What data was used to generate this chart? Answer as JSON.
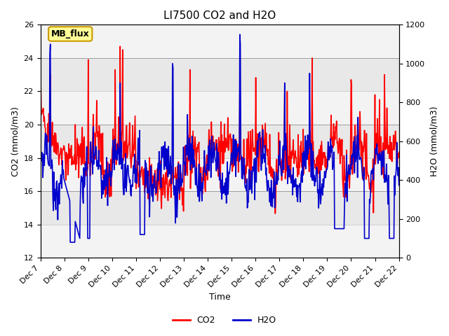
{
  "title": "LI7500 CO2 and H2O",
  "xlabel": "Time",
  "ylabel_left": "CO2 (mmol/m3)",
  "ylabel_right": "H2O (mmol/m3)",
  "co2_color": "#FF0000",
  "h2o_color": "#0000CC",
  "ylim_left": [
    12,
    26
  ],
  "ylim_right": [
    0,
    1200
  ],
  "xlim": [
    0,
    15
  ],
  "xtick_labels": [
    "Dec 7",
    "Dec 8",
    "Dec 9",
    "Dec 10",
    "Dec 11",
    "Dec 12",
    "Dec 13",
    "Dec 14",
    "Dec 15",
    "Dec 16",
    "Dec 17",
    "Dec 18",
    "Dec 19",
    "Dec 20",
    "Dec 21",
    "Dec 22"
  ],
  "bg_color": "#E8E8E8",
  "band_color": "#D0D0D0",
  "annotation_text": "MB_flux",
  "annotation_bg": "#FFFF99",
  "annotation_border": "#CC9900",
  "title_fontsize": 11,
  "axis_fontsize": 9,
  "tick_fontsize": 8,
  "legend_fontsize": 9,
  "line_width": 1.2
}
